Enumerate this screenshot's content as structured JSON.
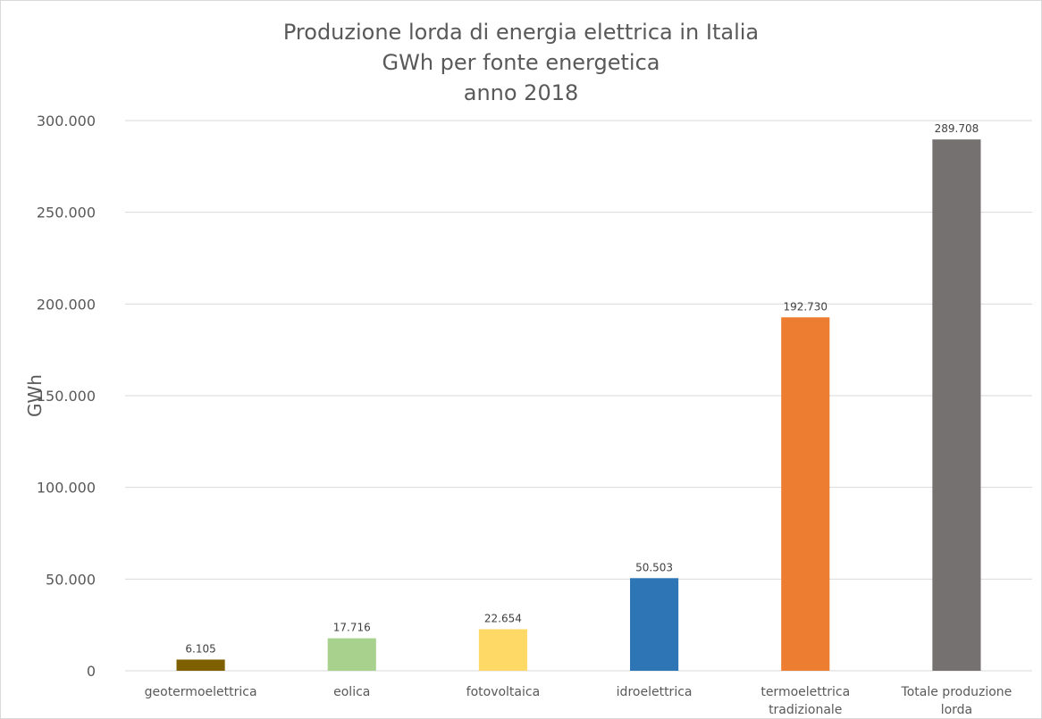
{
  "chart_data": {
    "type": "bar",
    "title": [
      "Produzione lorda di energia elettrica in Italia",
      "GWh per fonte energetica",
      "anno 2018"
    ],
    "ylabel": "GWh",
    "xlabel": "",
    "ylim": [
      0,
      300000
    ],
    "yticks": [
      0,
      50000,
      100000,
      150000,
      200000,
      250000,
      300000
    ],
    "ytick_labels": [
      "0",
      "50.000",
      "100.000",
      "150.000",
      "200.000",
      "250.000",
      "300.000"
    ],
    "grid": true,
    "legend": "none",
    "categories": [
      [
        "geotermoelettrica"
      ],
      [
        "eolica"
      ],
      [
        "fotovoltaica"
      ],
      [
        "idroelettrica"
      ],
      [
        "termoelettrica",
        "tradizionale"
      ],
      [
        "Totale produzione",
        "lorda"
      ]
    ],
    "values": [
      6105,
      17716,
      22654,
      50503,
      192730,
      289708
    ],
    "value_labels": [
      "6.105",
      "17.716",
      "22.654",
      "50.503",
      "192.730",
      "289.708"
    ],
    "colors": [
      "#7F6000",
      "#A9D18E",
      "#FFD966",
      "#2E75B6",
      "#ED7D31",
      "#767171"
    ]
  }
}
